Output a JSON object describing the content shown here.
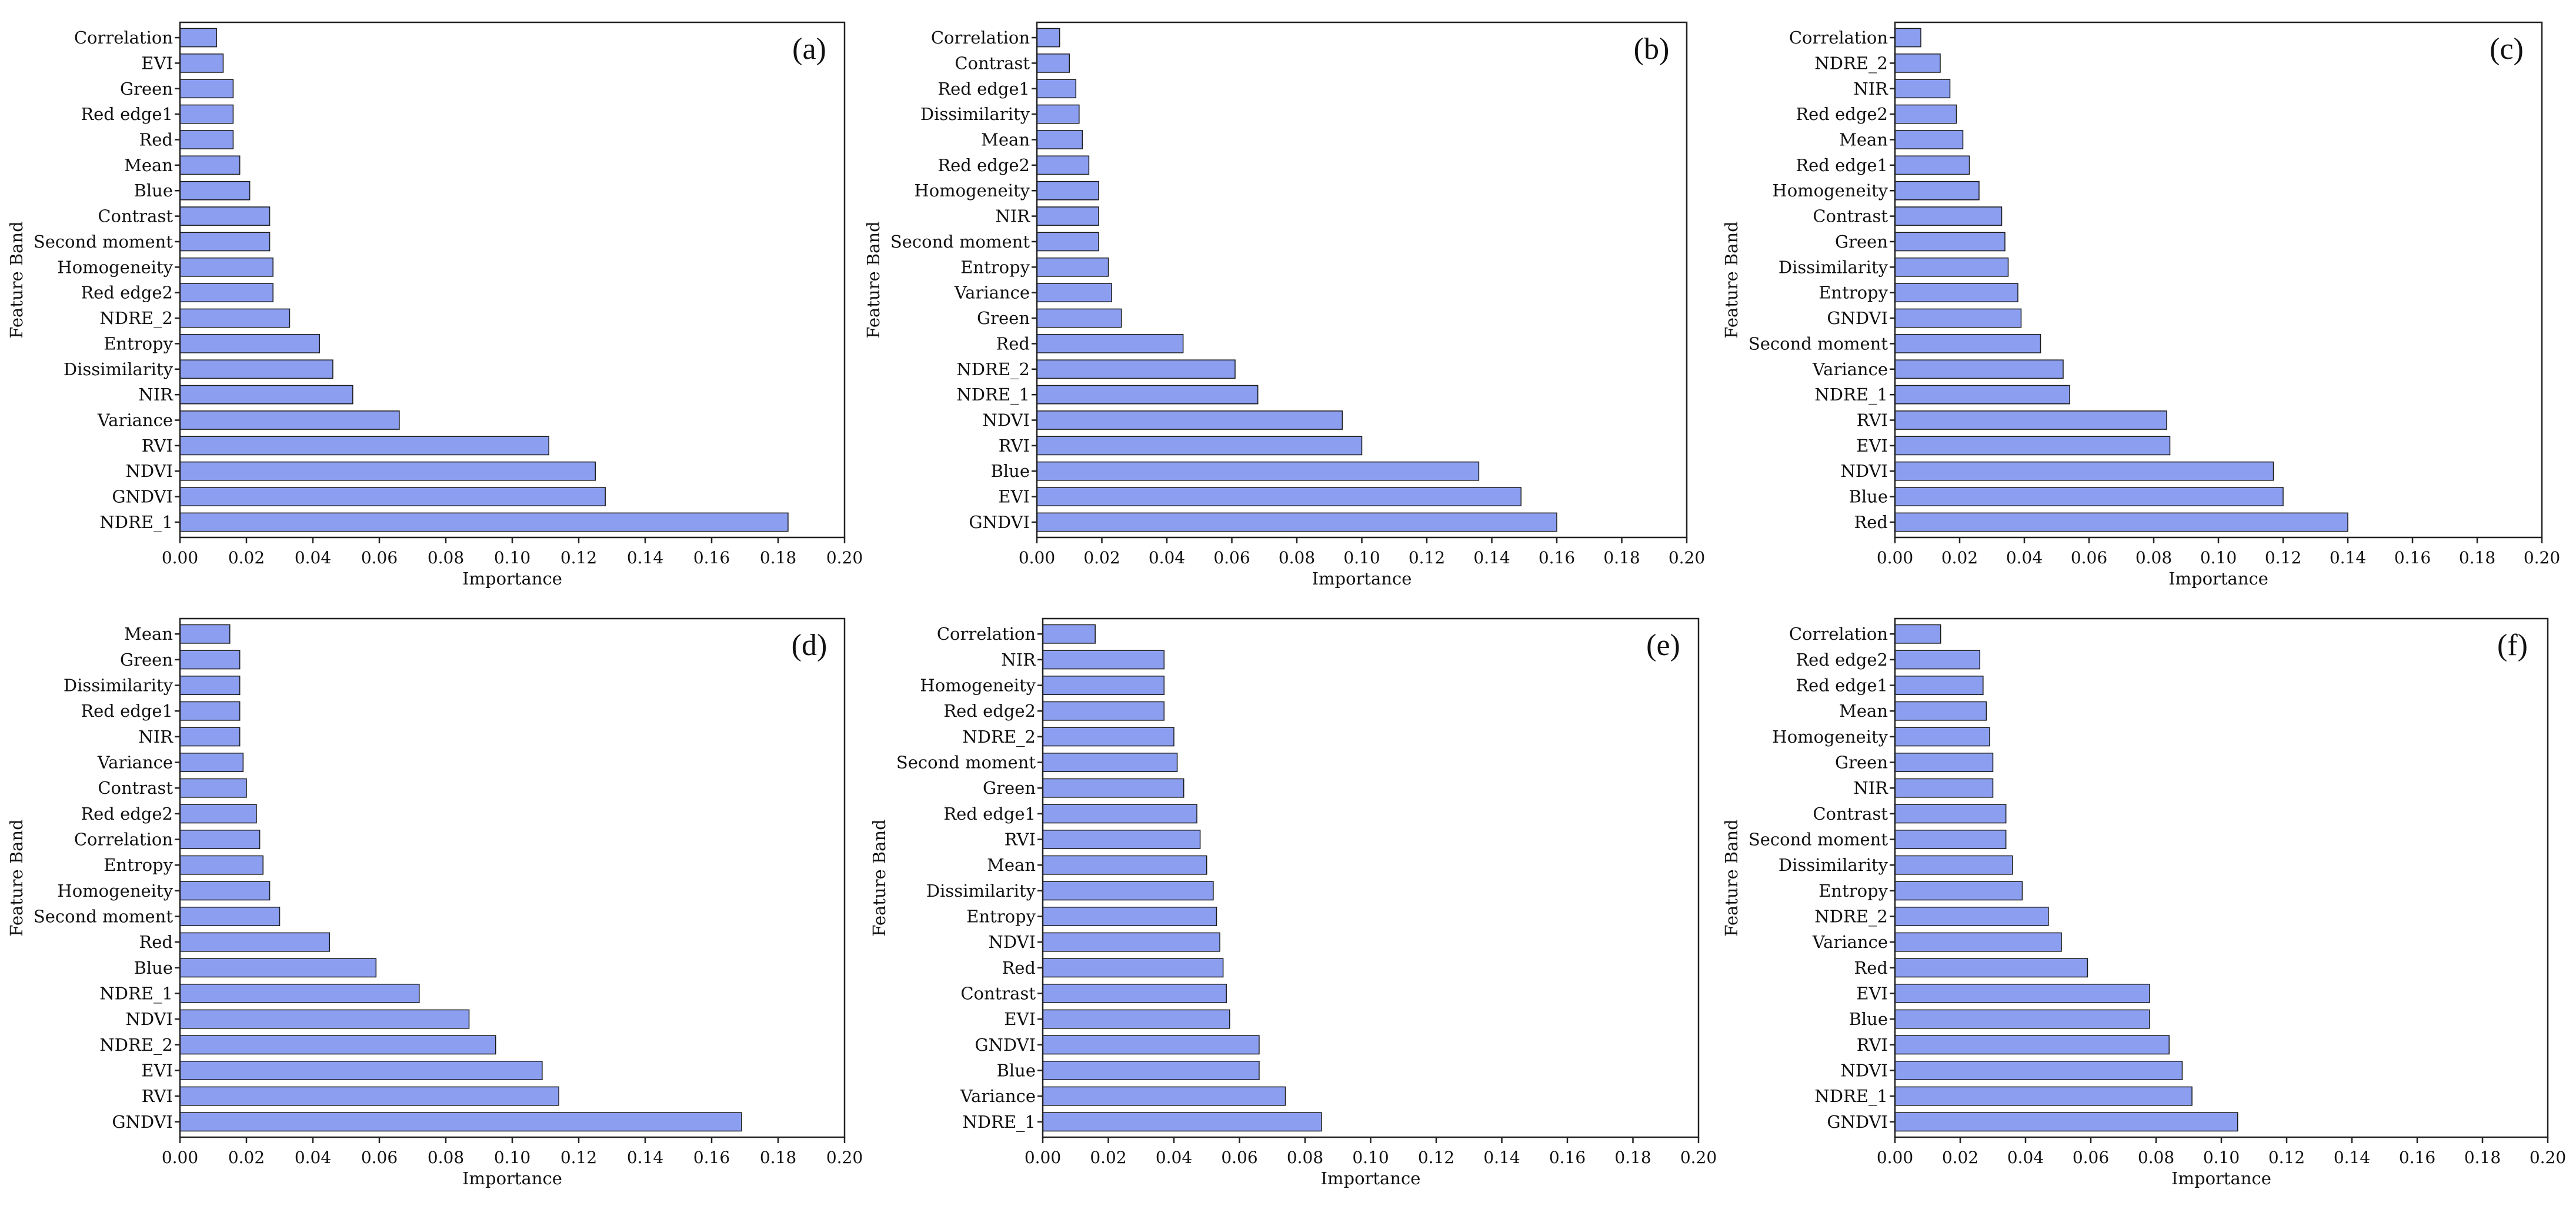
{
  "chart_data": [
    {
      "type": "bar",
      "orientation": "horizontal",
      "panel": "(a)",
      "xlabel": "Importance",
      "ylabel": "Feature Band",
      "xlim": [
        0,
        0.2
      ],
      "xticks": [
        "0.00",
        "0.02",
        "0.04",
        "0.06",
        "0.08",
        "0.10",
        "0.12",
        "0.14",
        "0.16",
        "0.18",
        "0.20"
      ],
      "categories": [
        "Correlation",
        "EVI",
        "Green",
        "Red edge1",
        "Red",
        "Mean",
        "Blue",
        "Contrast",
        "Second  moment",
        "Homogeneity",
        "Red edge2",
        "NDRE_2",
        "Entropy",
        "Dissimilarity",
        "NIR",
        "Variance",
        "RVI",
        "NDVI",
        "GNDVI",
        "NDRE_1"
      ],
      "values": [
        0.011,
        0.013,
        0.016,
        0.016,
        0.016,
        0.018,
        0.021,
        0.027,
        0.027,
        0.028,
        0.028,
        0.033,
        0.042,
        0.046,
        0.052,
        0.066,
        0.111,
        0.125,
        0.128,
        0.183
      ]
    },
    {
      "type": "bar",
      "orientation": "horizontal",
      "panel": "(b)",
      "xlabel": "Importance",
      "ylabel": "Feature Band",
      "xlim": [
        0,
        0.2
      ],
      "xticks": [
        "0.00",
        "0.02",
        "0.04",
        "0.06",
        "0.08",
        "0.10",
        "0.12",
        "0.14",
        "0.16",
        "0.18",
        "0.20"
      ],
      "categories": [
        "Correlation",
        "Contrast",
        "Red edge1",
        "Dissimilarity",
        "Mean",
        "Red edge2",
        "Homogeneity",
        "NIR",
        "Second  moment",
        "Entropy",
        "Variance",
        "Green",
        "Red",
        "NDRE_2",
        "NDRE_1",
        "NDVI",
        "RVI",
        "Blue",
        "EVI",
        "GNDVI"
      ],
      "values": [
        0.007,
        0.01,
        0.012,
        0.013,
        0.014,
        0.016,
        0.019,
        0.019,
        0.019,
        0.022,
        0.023,
        0.026,
        0.045,
        0.061,
        0.068,
        0.094,
        0.1,
        0.136,
        0.149,
        0.16
      ]
    },
    {
      "type": "bar",
      "orientation": "horizontal",
      "panel": "(c)",
      "xlabel": "Importance",
      "ylabel": "Feature Band",
      "xlim": [
        0,
        0.2
      ],
      "xticks": [
        "0.00",
        "0.02",
        "0.04",
        "0.06",
        "0.08",
        "0.10",
        "0.12",
        "0.14",
        "0.16",
        "0.18",
        "0.20"
      ],
      "categories": [
        "Correlation",
        "NDRE_2",
        "NIR",
        "Red edge2",
        "Mean",
        "Red edge1",
        "Homogeneity",
        "Contrast",
        "Green",
        "Dissimilarity",
        "Entropy",
        "GNDVI",
        "Second  moment",
        "Variance",
        "NDRE_1",
        "RVI",
        "EVI",
        "NDVI",
        "Blue",
        "Red"
      ],
      "values": [
        0.008,
        0.014,
        0.017,
        0.019,
        0.021,
        0.023,
        0.026,
        0.033,
        0.034,
        0.035,
        0.038,
        0.039,
        0.045,
        0.052,
        0.054,
        0.084,
        0.085,
        0.117,
        0.12,
        0.14
      ]
    },
    {
      "type": "bar",
      "orientation": "horizontal",
      "panel": "(d)",
      "xlabel": "Importance",
      "ylabel": "Feature Band",
      "xlim": [
        0,
        0.2
      ],
      "xticks": [
        "0.00",
        "0.02",
        "0.04",
        "0.06",
        "0.08",
        "0.10",
        "0.12",
        "0.14",
        "0.16",
        "0.18",
        "0.20"
      ],
      "categories": [
        "Mean",
        "Green",
        "Dissimilarity",
        "Red edge1",
        "NIR",
        "Variance",
        "Contrast",
        "Red edge2",
        "Correlation",
        "Entropy",
        "Homogeneity",
        "Second  moment",
        "Red",
        "Blue",
        "NDRE_1",
        "NDVI",
        "NDRE_2",
        "EVI",
        "RVI",
        "GNDVI"
      ],
      "values": [
        0.015,
        0.018,
        0.018,
        0.018,
        0.018,
        0.019,
        0.02,
        0.023,
        0.024,
        0.025,
        0.027,
        0.03,
        0.045,
        0.059,
        0.072,
        0.087,
        0.095,
        0.109,
        0.114,
        0.169
      ]
    },
    {
      "type": "bar",
      "orientation": "horizontal",
      "panel": "(e)",
      "xlabel": "Importance",
      "ylabel": "Feature Band",
      "xlim": [
        0,
        0.2
      ],
      "xticks": [
        "0.00",
        "0.02",
        "0.04",
        "0.06",
        "0.08",
        "0.10",
        "0.12",
        "0.14",
        "0.16",
        "0.18",
        "0.20"
      ],
      "categories": [
        "Correlation",
        "NIR",
        "Homogeneity",
        "Red edge2",
        "NDRE_2",
        "Second  moment",
        "Green",
        "Red edge1",
        "RVI",
        "Mean",
        "Dissimilarity",
        "Entropy",
        "NDVI",
        "Red",
        "Contrast",
        "EVI",
        "GNDVI",
        "Blue",
        "Variance",
        "NDRE_1"
      ],
      "values": [
        0.016,
        0.037,
        0.037,
        0.037,
        0.04,
        0.041,
        0.043,
        0.047,
        0.048,
        0.05,
        0.052,
        0.053,
        0.054,
        0.055,
        0.056,
        0.057,
        0.066,
        0.066,
        0.074,
        0.085
      ]
    },
    {
      "type": "bar",
      "orientation": "horizontal",
      "panel": "(f)",
      "xlabel": "Importance",
      "ylabel": "Feature Band",
      "xlim": [
        0,
        0.2
      ],
      "xticks": [
        "0.00",
        "0.02",
        "0.04",
        "0.06",
        "0.08",
        "0.10",
        "0.12",
        "0.14",
        "0.16",
        "0.18",
        "0.20"
      ],
      "categories": [
        "Correlation",
        "Red edge2",
        "Red edge1",
        "Mean",
        "Homogeneity",
        "Green",
        "NIR",
        "Contrast",
        "Second  moment",
        "Dissimilarity",
        "Entropy",
        "NDRE_2",
        "Variance",
        "Red",
        "EVI",
        "Blue",
        "RVI",
        "NDVI",
        "NDRE_1",
        "GNDVI"
      ],
      "values": [
        0.014,
        0.026,
        0.027,
        0.028,
        0.029,
        0.03,
        0.03,
        0.034,
        0.034,
        0.036,
        0.039,
        0.047,
        0.051,
        0.059,
        0.078,
        0.078,
        0.084,
        0.088,
        0.091,
        0.105
      ]
    }
  ],
  "colors": {
    "bar_fill": "#8c9eef",
    "bar_stroke": "#1a1a1a",
    "axis": "#222222"
  }
}
